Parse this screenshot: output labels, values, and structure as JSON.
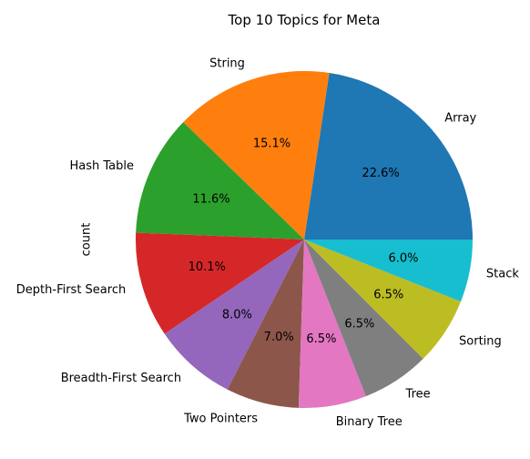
{
  "chart_data": {
    "type": "pie",
    "title": "Top 10 Topics for Meta",
    "ylabel": "count",
    "categories": [
      "Array",
      "String",
      "Hash Table",
      "Depth-First Search",
      "Breadth-First Search",
      "Two Pointers",
      "Binary Tree",
      "Tree",
      "Sorting",
      "Stack"
    ],
    "percent_labels": [
      "22.6%",
      "15.1%",
      "11.6%",
      "10.1%",
      "8.0%",
      "7.0%",
      "6.5%",
      "6.5%",
      "6.5%",
      "6.0%"
    ],
    "values": [
      22.6,
      15.1,
      11.6,
      10.1,
      8.0,
      7.0,
      6.5,
      6.5,
      6.5,
      6.0
    ],
    "colors": [
      "#1f77b4",
      "#ff7f0e",
      "#2ca02c",
      "#d62728",
      "#9467bd",
      "#8c564b",
      "#e377c2",
      "#7f7f7f",
      "#bcbd22",
      "#17becf"
    ],
    "start_angle_deg": 0,
    "direction": "counterclockwise"
  }
}
